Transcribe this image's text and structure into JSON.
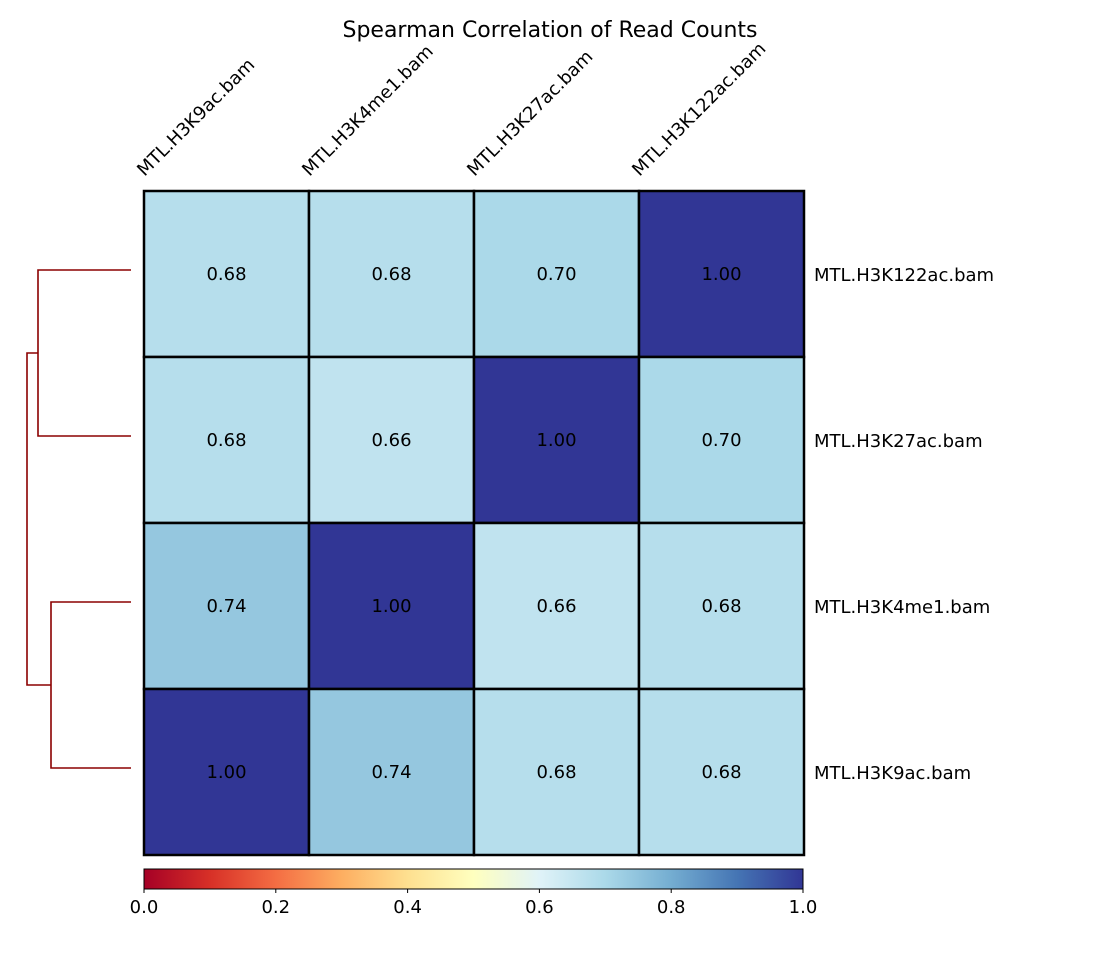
{
  "chart_data": {
    "type": "heatmap",
    "title": "Spearman Correlation of Read Counts",
    "columns": [
      "MTL.H3K9ac.bam",
      "MTL.H3K4me1.bam",
      "MTL.H3K27ac.bam",
      "MTL.H3K122ac.bam"
    ],
    "rows": [
      "MTL.H3K122ac.bam",
      "MTL.H3K27ac.bam",
      "MTL.H3K4me1.bam",
      "MTL.H3K9ac.bam"
    ],
    "values": [
      [
        0.68,
        0.68,
        0.7,
        1.0
      ],
      [
        0.68,
        0.66,
        1.0,
        0.7
      ],
      [
        0.74,
        1.0,
        0.66,
        0.68
      ],
      [
        1.0,
        0.74,
        0.68,
        0.68
      ]
    ],
    "value_format": "2 decimals",
    "colormap": "RdYlBu",
    "colormap_stops": [
      "#a50026",
      "#d73027",
      "#f46d43",
      "#fdae61",
      "#fee090",
      "#ffffbf",
      "#e0f3f8",
      "#abd9e9",
      "#74add1",
      "#4575b4",
      "#313695"
    ],
    "colorbar": {
      "orientation": "horizontal",
      "placement": "bottom",
      "range": [
        0.0,
        1.0
      ],
      "ticks": [
        "0.0",
        "0.2",
        "0.4",
        "0.6",
        "0.8",
        "1.0"
      ]
    },
    "dendrogram": {
      "placement": "left",
      "color": "#8b0000",
      "clusters": [
        [
          "MTL.H3K122ac.bam",
          "MTL.H3K27ac.bam"
        ],
        [
          "MTL.H3K4me1.bam",
          "MTL.H3K9ac.bam"
        ]
      ]
    },
    "grid_color": "#000000",
    "grid": true
  }
}
